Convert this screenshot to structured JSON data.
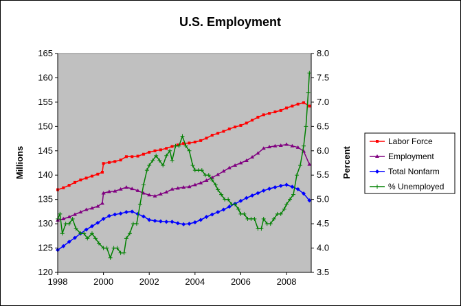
{
  "chart_data": {
    "type": "line",
    "title": "U.S. Employment",
    "xlabel": "",
    "ylabel": "Millions",
    "y2label": "Percent",
    "xlim": [
      1998,
      2009.08
    ],
    "ylim": [
      120,
      165
    ],
    "y2lim": [
      3.5,
      8.0
    ],
    "x_ticks": [
      "1998",
      "2000",
      "2002",
      "2004",
      "2006",
      "2008"
    ],
    "y_ticks": [
      "120",
      "125",
      "130",
      "135",
      "140",
      "145",
      "150",
      "155",
      "160",
      "165"
    ],
    "y2_ticks": [
      "3.5",
      "4.0",
      "4.5",
      "5.0",
      "5.5",
      "6.0",
      "6.5",
      "7.0",
      "7.5",
      "8.0"
    ],
    "grid": false,
    "plot_background": "#c0c0c0",
    "legend_position": "right",
    "series": [
      {
        "name": "Labor Force",
        "color": "#ff0000",
        "marker": "square",
        "axis": "left",
        "x": [
          1998.0,
          1998.25,
          1998.5,
          1998.75,
          1999.0,
          1999.25,
          1999.5,
          1999.75,
          1999.95,
          2000.0,
          2000.25,
          2000.5,
          2000.75,
          2001.0,
          2001.25,
          2001.5,
          2001.75,
          2002.0,
          2002.25,
          2002.5,
          2002.75,
          2003.0,
          2003.25,
          2003.5,
          2003.75,
          2004.0,
          2004.25,
          2004.5,
          2004.75,
          2005.0,
          2005.25,
          2005.5,
          2005.75,
          2006.0,
          2006.25,
          2006.5,
          2006.75,
          2007.0,
          2007.25,
          2007.5,
          2007.75,
          2008.0,
          2008.25,
          2008.5,
          2008.75,
          2009.0
        ],
        "values": [
          137.0,
          137.4,
          137.9,
          138.5,
          139.0,
          139.4,
          139.8,
          140.2,
          140.6,
          142.4,
          142.6,
          142.8,
          143.1,
          143.8,
          143.8,
          143.9,
          144.3,
          144.7,
          145.0,
          145.2,
          145.5,
          145.9,
          146.2,
          146.5,
          146.6,
          146.8,
          147.1,
          147.6,
          148.2,
          148.6,
          149.0,
          149.5,
          149.9,
          150.2,
          150.7,
          151.3,
          151.9,
          152.4,
          152.7,
          153.0,
          153.3,
          153.8,
          154.2,
          154.6,
          154.9,
          154.2
        ]
      },
      {
        "name": "Employment",
        "color": "#800080",
        "marker": "triangle",
        "axis": "left",
        "x": [
          1998.0,
          1998.25,
          1998.5,
          1998.75,
          1999.0,
          1999.25,
          1999.5,
          1999.75,
          1999.95,
          2000.0,
          2000.25,
          2000.5,
          2000.75,
          2001.0,
          2001.25,
          2001.5,
          2001.75,
          2002.0,
          2002.25,
          2002.5,
          2002.75,
          2003.0,
          2003.25,
          2003.5,
          2003.75,
          2004.0,
          2004.25,
          2004.5,
          2004.75,
          2005.0,
          2005.25,
          2005.5,
          2005.75,
          2006.0,
          2006.25,
          2006.5,
          2006.75,
          2007.0,
          2007.25,
          2007.5,
          2007.75,
          2008.0,
          2008.25,
          2008.5,
          2008.75,
          2009.0
        ],
        "values": [
          130.7,
          131.0,
          131.4,
          131.9,
          132.4,
          132.9,
          133.2,
          133.6,
          134.2,
          136.3,
          136.6,
          136.7,
          137.1,
          137.5,
          137.2,
          136.8,
          136.3,
          135.9,
          135.7,
          136.1,
          136.5,
          137.1,
          137.3,
          137.5,
          137.6,
          138.0,
          138.4,
          138.9,
          139.5,
          140.1,
          140.8,
          141.5,
          142.0,
          142.5,
          143.0,
          143.7,
          144.5,
          145.5,
          145.8,
          146.0,
          146.1,
          146.3,
          146.0,
          145.7,
          144.9,
          142.2
        ]
      },
      {
        "name": "Total Nonfarm",
        "color": "#0000ff",
        "marker": "diamond",
        "axis": "left",
        "x": [
          1998.0,
          1998.25,
          1998.5,
          1998.75,
          1999.0,
          1999.25,
          1999.5,
          1999.75,
          2000.0,
          2000.25,
          2000.5,
          2000.75,
          2001.0,
          2001.25,
          2001.5,
          2001.75,
          2002.0,
          2002.25,
          2002.5,
          2002.75,
          2003.0,
          2003.25,
          2003.5,
          2003.75,
          2004.0,
          2004.25,
          2004.5,
          2004.75,
          2005.0,
          2005.25,
          2005.5,
          2005.75,
          2006.0,
          2006.25,
          2006.5,
          2006.75,
          2007.0,
          2007.25,
          2007.5,
          2007.75,
          2008.0,
          2008.25,
          2008.5,
          2008.75,
          2009.0
        ],
        "values": [
          124.6,
          125.4,
          126.3,
          127.1,
          128.0,
          128.8,
          129.5,
          130.2,
          131.0,
          131.6,
          131.9,
          132.1,
          132.4,
          132.5,
          132.0,
          131.5,
          130.8,
          130.6,
          130.5,
          130.4,
          130.4,
          130.1,
          129.9,
          130.0,
          130.3,
          130.8,
          131.4,
          131.9,
          132.4,
          132.9,
          133.5,
          134.1,
          134.7,
          135.3,
          135.8,
          136.3,
          136.8,
          137.2,
          137.5,
          137.8,
          138.0,
          137.6,
          137.1,
          136.2,
          134.8
        ]
      },
      {
        "name": "% Unemployed",
        "color": "#008000",
        "marker": "plus",
        "axis": "right",
        "x": [
          1998.0,
          1998.1,
          1998.2,
          1998.35,
          1998.5,
          1998.65,
          1998.8,
          1999.0,
          1999.15,
          1999.3,
          1999.5,
          1999.65,
          1999.8,
          2000.0,
          2000.15,
          2000.3,
          2000.45,
          2000.6,
          2000.75,
          2000.9,
          2001.0,
          2001.15,
          2001.3,
          2001.45,
          2001.6,
          2001.75,
          2001.9,
          2002.0,
          2002.15,
          2002.3,
          2002.45,
          2002.6,
          2002.75,
          2002.9,
          2003.0,
          2003.15,
          2003.3,
          2003.45,
          2003.6,
          2003.75,
          2003.9,
          2004.0,
          2004.15,
          2004.3,
          2004.45,
          2004.6,
          2004.75,
          2004.9,
          2005.0,
          2005.15,
          2005.3,
          2005.45,
          2005.6,
          2005.75,
          2005.9,
          2006.0,
          2006.15,
          2006.3,
          2006.45,
          2006.6,
          2006.75,
          2006.9,
          2007.0,
          2007.15,
          2007.3,
          2007.45,
          2007.6,
          2007.75,
          2007.9,
          2008.0,
          2008.15,
          2008.3,
          2008.45,
          2008.6,
          2008.75,
          2008.85,
          2008.95,
          2009.0
        ],
        "values": [
          4.6,
          4.7,
          4.3,
          4.5,
          4.5,
          4.6,
          4.4,
          4.3,
          4.3,
          4.2,
          4.3,
          4.2,
          4.1,
          4.0,
          4.0,
          3.8,
          4.0,
          4.0,
          3.9,
          3.9,
          4.2,
          4.3,
          4.5,
          4.5,
          4.9,
          5.3,
          5.6,
          5.7,
          5.8,
          5.9,
          5.8,
          5.7,
          5.9,
          6.0,
          5.8,
          6.1,
          6.1,
          6.3,
          6.1,
          6.0,
          5.7,
          5.6,
          5.6,
          5.6,
          5.5,
          5.5,
          5.4,
          5.3,
          5.2,
          5.1,
          5.0,
          5.0,
          4.9,
          4.9,
          4.8,
          4.7,
          4.7,
          4.6,
          4.6,
          4.6,
          4.4,
          4.4,
          4.6,
          4.5,
          4.5,
          4.6,
          4.7,
          4.7,
          4.8,
          4.9,
          5.0,
          5.1,
          5.5,
          5.7,
          6.1,
          6.5,
          7.2,
          7.6
        ]
      }
    ]
  }
}
